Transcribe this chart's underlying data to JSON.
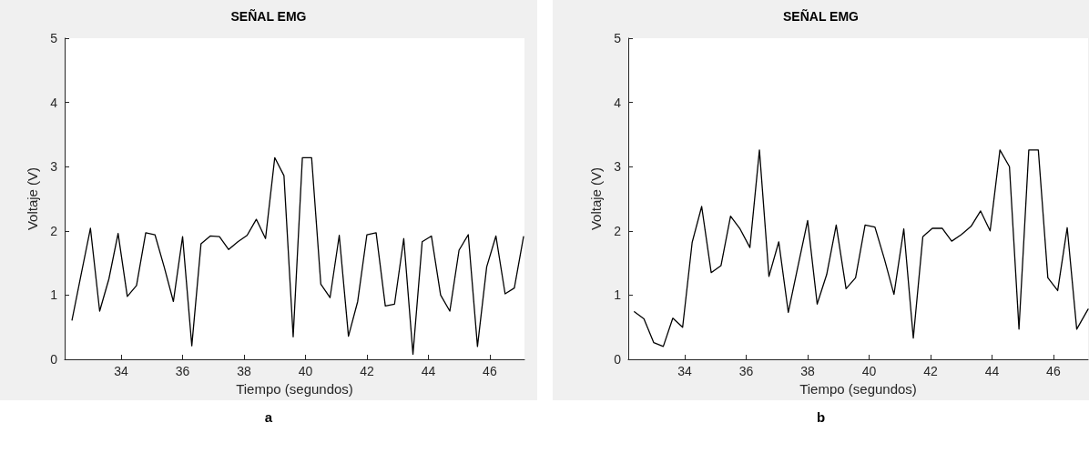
{
  "chart_data": [
    {
      "type": "line",
      "title": "SEÑAL EMG",
      "xlabel": "Tiempo (segundos)",
      "ylabel": "Voltaje (V)",
      "annotations": [
        "a"
      ],
      "x": [
        32.4,
        32.7,
        33.0,
        33.3,
        33.6,
        33.9,
        34.2,
        34.5,
        34.8,
        35.1,
        35.4,
        35.7,
        36.0,
        36.3,
        36.6,
        36.9,
        37.2,
        37.5,
        37.8,
        38.1,
        38.4,
        38.7,
        39.0,
        39.3,
        39.6,
        39.9,
        40.2,
        40.5,
        40.8,
        41.1,
        41.4,
        41.7,
        42.0,
        42.3,
        42.6,
        42.9,
        43.2,
        43.5,
        43.8,
        44.1,
        44.4,
        44.7,
        45.0,
        45.3,
        45.6,
        45.9,
        46.2,
        46.5,
        46.8,
        47.1
      ],
      "series": [
        {
          "color": "#000000",
          "values": [
            0.61,
            1.33,
            2.04,
            0.75,
            1.25,
            1.96,
            0.98,
            1.15,
            1.97,
            1.94,
            1.44,
            0.9,
            1.91,
            0.21,
            1.8,
            1.92,
            1.91,
            1.71,
            1.83,
            1.93,
            2.18,
            1.88,
            3.14,
            2.86,
            0.35,
            3.14,
            3.14,
            1.17,
            0.96,
            1.93,
            0.36,
            0.9,
            1.94,
            1.97,
            0.83,
            0.86,
            1.88,
            0.08,
            1.83,
            1.92,
            1.0,
            0.75,
            1.7,
            1.94,
            0.2,
            1.44,
            1.92,
            1.02,
            1.11,
            1.91
          ]
        }
      ],
      "xlim": [
        32.16,
        47.13
      ],
      "xticks": [
        34,
        36,
        38,
        40,
        42,
        44,
        46
      ],
      "ylim": [
        0,
        5
      ],
      "yticks": [
        0,
        1,
        2,
        3,
        4,
        5
      ],
      "grid": false,
      "marker": "none",
      "line_style": "solid"
    },
    {
      "type": "line",
      "title": "SEÑAL EMG",
      "xlabel": "Tiempo (segundos)",
      "ylabel": "Voltaje (V)",
      "annotations": [
        "b"
      ],
      "x": [
        32.36,
        32.67,
        32.99,
        33.3,
        33.61,
        33.93,
        34.24,
        34.55,
        34.86,
        35.18,
        35.49,
        35.8,
        36.12,
        36.43,
        36.74,
        37.06,
        37.37,
        37.68,
        38.0,
        38.31,
        38.62,
        38.93,
        39.25,
        39.56,
        39.87,
        40.19,
        40.5,
        40.81,
        41.13,
        41.44,
        41.75,
        42.06,
        42.38,
        42.69,
        43.0,
        43.32,
        43.63,
        43.94,
        44.26,
        44.57,
        44.88,
        45.2,
        45.51,
        45.82,
        46.14,
        46.45,
        46.76,
        47.13
      ],
      "series": [
        {
          "color": "#000000",
          "values": [
            0.74,
            0.63,
            0.26,
            0.2,
            0.64,
            0.5,
            1.82,
            2.38,
            1.35,
            1.46,
            2.23,
            2.03,
            1.74,
            3.26,
            1.29,
            1.83,
            0.73,
            1.44,
            2.16,
            0.86,
            1.32,
            2.09,
            1.1,
            1.27,
            2.09,
            2.06,
            1.56,
            1.01,
            2.03,
            0.33,
            1.91,
            2.04,
            2.04,
            1.84,
            1.94,
            2.07,
            2.31,
            2.0,
            3.26,
            3.0,
            0.47,
            3.26,
            3.26,
            1.27,
            1.07,
            2.05,
            0.47,
            0.78
          ]
        }
      ],
      "xlim": [
        32.16,
        47.13
      ],
      "xticks": [
        34,
        36,
        38,
        40,
        42,
        44,
        46
      ],
      "ylim": [
        0,
        5
      ],
      "yticks": [
        0,
        1,
        2,
        3,
        4,
        5
      ],
      "grid": false,
      "marker": "none",
      "line_style": "solid"
    }
  ]
}
